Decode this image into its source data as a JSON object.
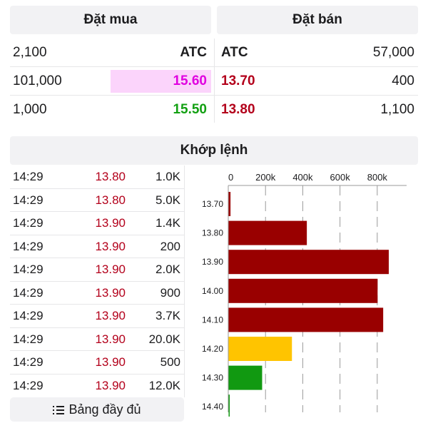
{
  "order_book": {
    "buy_title": "Đặt mua",
    "sell_title": "Đặt bán",
    "rows": [
      {
        "buy_volume": "2,100",
        "buy_price": "ATC",
        "sell_price": "ATC",
        "sell_volume": "57,000"
      },
      {
        "buy_volume": "101,000",
        "buy_price": "15.60",
        "sell_price": "13.70",
        "sell_volume": "400"
      },
      {
        "buy_volume": "1,000",
        "buy_price": "15.50",
        "sell_price": "13.80",
        "sell_volume": "1,100"
      }
    ],
    "colors": {
      "ceiling": "#e000e0",
      "up": "#12a012",
      "down": "#b3001b",
      "highlight": "#fbd4fb"
    }
  },
  "matched": {
    "title": "Khớp lệnh",
    "trades": [
      {
        "time": "14:29",
        "price": "13.80",
        "volume": "1.0K"
      },
      {
        "time": "14:29",
        "price": "13.80",
        "volume": "5.0K"
      },
      {
        "time": "14:29",
        "price": "13.90",
        "volume": "1.4K"
      },
      {
        "time": "14:29",
        "price": "13.90",
        "volume": "200"
      },
      {
        "time": "14:29",
        "price": "13.90",
        "volume": "2.0K"
      },
      {
        "time": "14:29",
        "price": "13.90",
        "volume": "900"
      },
      {
        "time": "14:29",
        "price": "13.90",
        "volume": "3.7K"
      },
      {
        "time": "14:29",
        "price": "13.90",
        "volume": "20.0K"
      },
      {
        "time": "14:29",
        "price": "13.90",
        "volume": "500"
      },
      {
        "time": "14:29",
        "price": "13.90",
        "volume": "12.0K"
      }
    ],
    "full_table_label": "Bảng đầy đủ"
  },
  "chart_data": {
    "type": "bar",
    "orientation": "horizontal",
    "categories": [
      "13.70",
      "13.80",
      "13.90",
      "14.00",
      "14.10",
      "14.20",
      "14.30",
      "14.40"
    ],
    "values": [
      10000,
      420000,
      860000,
      800000,
      830000,
      340000,
      180000,
      0
    ],
    "bar_colors": [
      "#990000",
      "#990000",
      "#990000",
      "#990000",
      "#990000",
      "#ffc400",
      "#119911",
      "#119911"
    ],
    "x_ticks": [
      "0",
      "200k",
      "400k",
      "600k",
      "800k"
    ],
    "xlim": [
      0,
      950000
    ],
    "grid": true
  }
}
